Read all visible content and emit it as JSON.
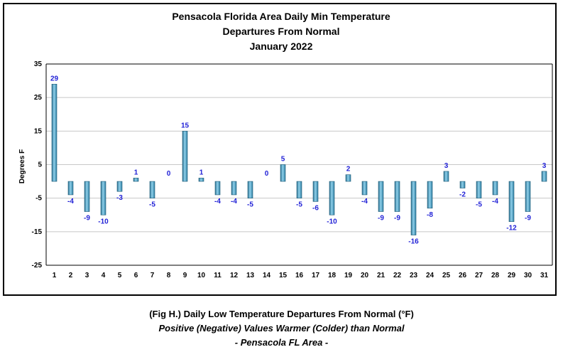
{
  "chart_data": {
    "type": "bar",
    "title": [
      "Pensacola Florida Area Daily Min Temperature",
      "Departures From Normal",
      "January 2022"
    ],
    "ylabel": "Degrees F",
    "xlabel": "",
    "ylim": [
      -25,
      35
    ],
    "yticks": [
      35,
      25,
      15,
      5,
      -5,
      -15,
      -25
    ],
    "grid": true,
    "categories": [
      "1",
      "2",
      "3",
      "4",
      "5",
      "6",
      "7",
      "8",
      "9",
      "10",
      "11",
      "12",
      "13",
      "14",
      "15",
      "16",
      "17",
      "18",
      "19",
      "20",
      "21",
      "22",
      "23",
      "24",
      "25",
      "26",
      "27",
      "28",
      "29",
      "30",
      "31"
    ],
    "values": [
      29,
      -4,
      -9,
      -10,
      -3,
      1,
      -5,
      0,
      15,
      1,
      -4,
      -4,
      -5,
      0,
      5,
      -5,
      -6,
      -10,
      2,
      -4,
      -9,
      -9,
      -16,
      -8,
      3,
      -2,
      -5,
      -4,
      -12,
      -9,
      3
    ],
    "bar_color": "#4ea6c8",
    "label_color": "#1f1fd6"
  },
  "caption": {
    "line1": "(Fig H.) Daily Low Temperature Departures From Normal (°F)",
    "line2": "Positive (Negative) Values Warmer (Colder) than Normal",
    "line3": "- Pensacola FL Area -"
  }
}
